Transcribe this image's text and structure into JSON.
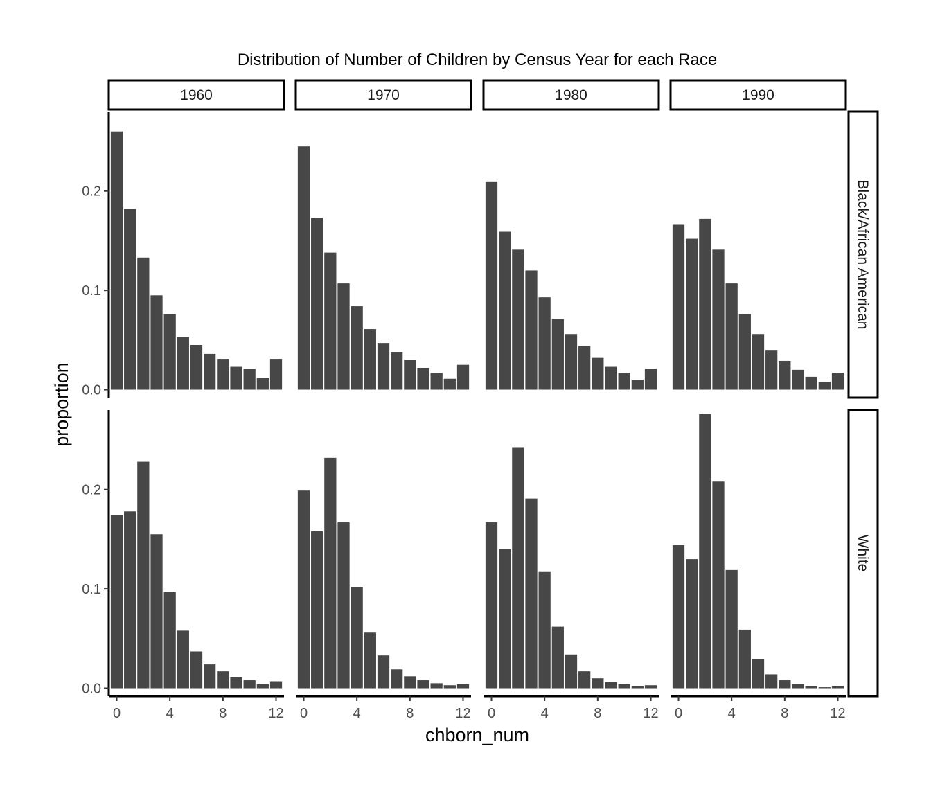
{
  "chart_data": {
    "type": "bar",
    "title": "Distribution of Number of Children by Census Year for each Race",
    "xlabel": "chborn_num",
    "ylabel": "proportion",
    "facet_columns": [
      "1960",
      "1970",
      "1980",
      "1990"
    ],
    "facet_rows": [
      "Black/African American",
      "White"
    ],
    "x": [
      0,
      1,
      2,
      3,
      4,
      5,
      6,
      7,
      8,
      9,
      10,
      11,
      12
    ],
    "x_ticks": [
      0,
      4,
      8,
      12
    ],
    "x_tick_labels": [
      "0",
      "4",
      "8",
      "12"
    ],
    "xlim": [
      -0.6,
      12.6
    ],
    "y_ticks": [
      0,
      0.1,
      0.2
    ],
    "y_tick_labels": [
      "0.0",
      "0.1",
      "0.2"
    ],
    "ylim": [
      -0.008,
      0.28
    ],
    "grid": false,
    "bar_color": "#474747",
    "panels": [
      {
        "row": "Black/African American",
        "col": "1960",
        "values": [
          0.26,
          0.182,
          0.133,
          0.095,
          0.076,
          0.053,
          0.045,
          0.036,
          0.031,
          0.023,
          0.021,
          0.012,
          0.031
        ]
      },
      {
        "row": "Black/African American",
        "col": "1970",
        "values": [
          0.245,
          0.173,
          0.138,
          0.107,
          0.084,
          0.061,
          0.047,
          0.038,
          0.03,
          0.022,
          0.017,
          0.011,
          0.025
        ]
      },
      {
        "row": "Black/African American",
        "col": "1980",
        "values": [
          0.209,
          0.159,
          0.141,
          0.12,
          0.093,
          0.071,
          0.056,
          0.044,
          0.032,
          0.023,
          0.017,
          0.01,
          0.021
        ]
      },
      {
        "row": "Black/African American",
        "col": "1990",
        "values": [
          0.166,
          0.152,
          0.172,
          0.141,
          0.107,
          0.076,
          0.056,
          0.04,
          0.029,
          0.02,
          0.013,
          0.008,
          0.017
        ]
      },
      {
        "row": "White",
        "col": "1960",
        "values": [
          0.174,
          0.178,
          0.228,
          0.155,
          0.097,
          0.058,
          0.037,
          0.024,
          0.017,
          0.011,
          0.008,
          0.004,
          0.007
        ]
      },
      {
        "row": "White",
        "col": "1970",
        "values": [
          0.199,
          0.158,
          0.232,
          0.167,
          0.102,
          0.056,
          0.033,
          0.019,
          0.012,
          0.008,
          0.005,
          0.003,
          0.004
        ]
      },
      {
        "row": "White",
        "col": "1980",
        "values": [
          0.167,
          0.14,
          0.242,
          0.191,
          0.117,
          0.062,
          0.034,
          0.017,
          0.01,
          0.006,
          0.004,
          0.002,
          0.003
        ]
      },
      {
        "row": "White",
        "col": "1990",
        "values": [
          0.144,
          0.13,
          0.276,
          0.208,
          0.119,
          0.059,
          0.029,
          0.014,
          0.008,
          0.004,
          0.002,
          0.001,
          0.002
        ]
      }
    ]
  }
}
